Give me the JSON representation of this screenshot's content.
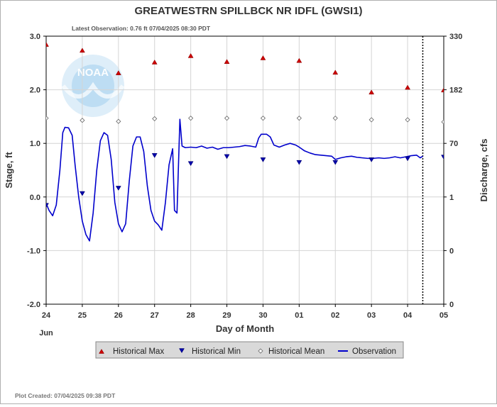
{
  "chart_data": {
    "type": "line",
    "title": "GREATWESTRN SPILLBCK NR IDFL  (GWSI1)",
    "subtitle": "Latest Observation: 0.76 ft 07/04/2025 08:30 PDT",
    "xlabel": "Day of Month",
    "ylabel_left": "Stage, ft",
    "ylabel_right": "Discharge, cfs",
    "month_label": "Jun",
    "footer": "Plot Created: 07/04/2025 09:38 PDT",
    "x_ticks": [
      "24",
      "25",
      "26",
      "27",
      "28",
      "29",
      "30",
      "01",
      "02",
      "03",
      "04",
      "05"
    ],
    "ylim": [
      -2.0,
      3.0
    ],
    "y_ticks": [
      -2.0,
      -1.0,
      0.0,
      1.0,
      2.0,
      3.0
    ],
    "y_tick_labels": [
      "-2.0",
      "-1.0",
      "0.0",
      "1.0",
      "2.0",
      "3.0"
    ],
    "right_axis": {
      "ticks_stage": [
        -2.0,
        -1.0,
        0.0,
        1.0,
        2.0,
        3.0
      ],
      "labels": [
        "0",
        "0",
        "1",
        "70",
        "182",
        "330"
      ]
    },
    "grid": true,
    "latest_observation_x": 10.42,
    "colors": {
      "observation": "#0000cc",
      "historical_max": "#cc0000",
      "historical_min": "#0000aa",
      "historical_mean": "#888888",
      "grid": "#d4d4d4",
      "noaa_logo": "#4aa3df"
    },
    "logo_text": "NOAA",
    "legend": {
      "placement": "bottom-center",
      "items": [
        {
          "key": "max",
          "label": "Historical Max"
        },
        {
          "key": "min",
          "label": "Historical Min"
        },
        {
          "key": "mean",
          "label": "Historical Mean"
        },
        {
          "key": "obs",
          "label": "Observation"
        }
      ]
    },
    "historical_max": [
      {
        "x": 0,
        "y": 2.84
      },
      {
        "x": 1,
        "y": 2.73
      },
      {
        "x": 2,
        "y": 2.31
      },
      {
        "x": 3,
        "y": 2.51
      },
      {
        "x": 4,
        "y": 2.63
      },
      {
        "x": 5,
        "y": 2.52
      },
      {
        "x": 6,
        "y": 2.59
      },
      {
        "x": 7,
        "y": 2.54
      },
      {
        "x": 8,
        "y": 2.32
      },
      {
        "x": 9,
        "y": 1.95
      },
      {
        "x": 10,
        "y": 2.04
      },
      {
        "x": 11,
        "y": 1.99
      }
    ],
    "historical_min": [
      {
        "x": 0,
        "y": -0.15
      },
      {
        "x": 1,
        "y": 0.07
      },
      {
        "x": 2,
        "y": 0.17
      },
      {
        "x": 3,
        "y": 0.78
      },
      {
        "x": 4,
        "y": 0.63
      },
      {
        "x": 5,
        "y": 0.76
      },
      {
        "x": 6,
        "y": 0.7
      },
      {
        "x": 7,
        "y": 0.65
      },
      {
        "x": 8,
        "y": 0.65
      },
      {
        "x": 9,
        "y": 0.7
      },
      {
        "x": 10,
        "y": 0.72
      },
      {
        "x": 11,
        "y": 0.75
      }
    ],
    "historical_mean": [
      {
        "x": 0,
        "y": 1.47
      },
      {
        "x": 1,
        "y": 1.43
      },
      {
        "x": 2,
        "y": 1.41
      },
      {
        "x": 3,
        "y": 1.46
      },
      {
        "x": 4,
        "y": 1.47
      },
      {
        "x": 5,
        "y": 1.47
      },
      {
        "x": 6,
        "y": 1.47
      },
      {
        "x": 7,
        "y": 1.47
      },
      {
        "x": 8,
        "y": 1.47
      },
      {
        "x": 9,
        "y": 1.44
      },
      {
        "x": 10,
        "y": 1.44
      },
      {
        "x": 11,
        "y": 1.4
      }
    ],
    "observation": [
      [
        0.0,
        -0.12
      ],
      [
        0.08,
        -0.25
      ],
      [
        0.18,
        -0.35
      ],
      [
        0.28,
        -0.15
      ],
      [
        0.38,
        0.5
      ],
      [
        0.46,
        1.2
      ],
      [
        0.52,
        1.3
      ],
      [
        0.62,
        1.29
      ],
      [
        0.72,
        1.15
      ],
      [
        0.8,
        0.6
      ],
      [
        0.9,
        0.0
      ],
      [
        1.0,
        -0.45
      ],
      [
        1.1,
        -0.7
      ],
      [
        1.2,
        -0.82
      ],
      [
        1.3,
        -0.3
      ],
      [
        1.4,
        0.5
      ],
      [
        1.5,
        1.05
      ],
      [
        1.6,
        1.2
      ],
      [
        1.7,
        1.15
      ],
      [
        1.8,
        0.7
      ],
      [
        1.9,
        -0.1
      ],
      [
        2.0,
        -0.5
      ],
      [
        2.1,
        -0.65
      ],
      [
        2.2,
        -0.5
      ],
      [
        2.3,
        0.3
      ],
      [
        2.4,
        0.95
      ],
      [
        2.5,
        1.12
      ],
      [
        2.6,
        1.12
      ],
      [
        2.7,
        0.85
      ],
      [
        2.8,
        0.2
      ],
      [
        2.9,
        -0.25
      ],
      [
        3.0,
        -0.45
      ],
      [
        3.1,
        -0.52
      ],
      [
        3.2,
        -0.62
      ],
      [
        3.3,
        -0.1
      ],
      [
        3.4,
        0.6
      ],
      [
        3.5,
        0.9
      ],
      [
        3.55,
        -0.25
      ],
      [
        3.62,
        -0.3
      ],
      [
        3.7,
        1.45
      ],
      [
        3.76,
        0.95
      ],
      [
        3.85,
        0.92
      ],
      [
        4.0,
        0.93
      ],
      [
        4.15,
        0.92
      ],
      [
        4.3,
        0.95
      ],
      [
        4.45,
        0.91
      ],
      [
        4.6,
        0.93
      ],
      [
        4.75,
        0.89
      ],
      [
        4.9,
        0.92
      ],
      [
        5.05,
        0.92
      ],
      [
        5.2,
        0.93
      ],
      [
        5.35,
        0.94
      ],
      [
        5.5,
        0.96
      ],
      [
        5.65,
        0.95
      ],
      [
        5.8,
        0.93
      ],
      [
        5.88,
        1.1
      ],
      [
        5.95,
        1.17
      ],
      [
        6.1,
        1.17
      ],
      [
        6.2,
        1.12
      ],
      [
        6.3,
        0.97
      ],
      [
        6.45,
        0.93
      ],
      [
        6.6,
        0.97
      ],
      [
        6.75,
        1.0
      ],
      [
        6.9,
        0.97
      ],
      [
        7.0,
        0.93
      ],
      [
        7.15,
        0.86
      ],
      [
        7.3,
        0.82
      ],
      [
        7.45,
        0.79
      ],
      [
        7.6,
        0.78
      ],
      [
        7.75,
        0.77
      ],
      [
        7.9,
        0.76
      ],
      [
        8.0,
        0.7
      ],
      [
        8.15,
        0.73
      ],
      [
        8.3,
        0.75
      ],
      [
        8.45,
        0.76
      ],
      [
        8.6,
        0.74
      ],
      [
        8.75,
        0.73
      ],
      [
        8.9,
        0.72
      ],
      [
        9.05,
        0.72
      ],
      [
        9.2,
        0.73
      ],
      [
        9.35,
        0.72
      ],
      [
        9.5,
        0.73
      ],
      [
        9.65,
        0.75
      ],
      [
        9.8,
        0.73
      ],
      [
        9.95,
        0.75
      ],
      [
        10.1,
        0.77
      ],
      [
        10.25,
        0.78
      ],
      [
        10.35,
        0.73
      ],
      [
        10.42,
        0.76
      ]
    ]
  }
}
